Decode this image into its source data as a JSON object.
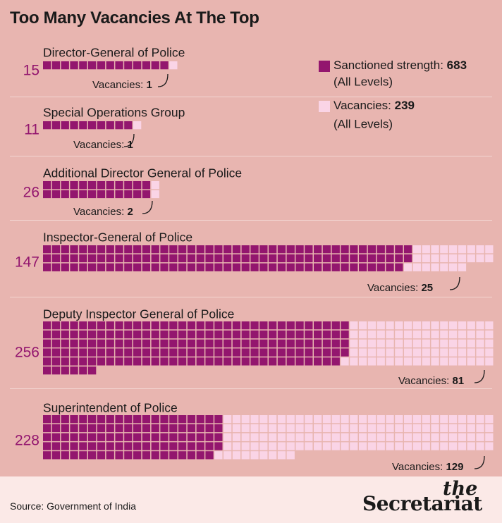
{
  "title": "Too Many Vacancies At The Top",
  "source": "Source: Government of India",
  "brand": {
    "the": "the",
    "name": "Secretariat"
  },
  "colors": {
    "filled": "#93166e",
    "vacant": "#fad4e6",
    "background": "#e8b5b0",
    "footer": "#fbe9e7"
  },
  "legend": {
    "filled_label": "Sanctioned strength:",
    "filled_value": "683",
    "filled_sub": "(All Levels)",
    "vacant_label": "Vacancies:",
    "vacant_value": "239",
    "vacant_sub": "(All Levels)"
  },
  "chart_data": {
    "type": "waffle",
    "unit": "posts",
    "categories": [
      {
        "name": "Director-General of Police",
        "sanctioned": 15,
        "vacancies": 1,
        "vacancy_label": "Vacancies:",
        "vacancy_value": "1"
      },
      {
        "name": "Special Operations Group",
        "sanctioned": 11,
        "vacancies": 1,
        "vacancy_label": "Vacancies:",
        "vacancy_value": "1"
      },
      {
        "name": "Additional Director General of Police",
        "sanctioned": 26,
        "vacancies": 2,
        "vacancy_label": "Vacancies:",
        "vacancy_value": "2"
      },
      {
        "name": "Inspector-General of Police",
        "sanctioned": 147,
        "vacancies": 25,
        "vacancy_label": "Vacancies:",
        "vacancy_value": "25"
      },
      {
        "name": "Deputy Inspector General of Police",
        "sanctioned": 256,
        "vacancies": 81,
        "vacancy_label": "Vacancies:",
        "vacancy_value": "81"
      },
      {
        "name": "Superintendent of Police",
        "sanctioned": 228,
        "vacancies": 129,
        "vacancy_label": "Vacancies:",
        "vacancy_value": "129"
      }
    ]
  }
}
